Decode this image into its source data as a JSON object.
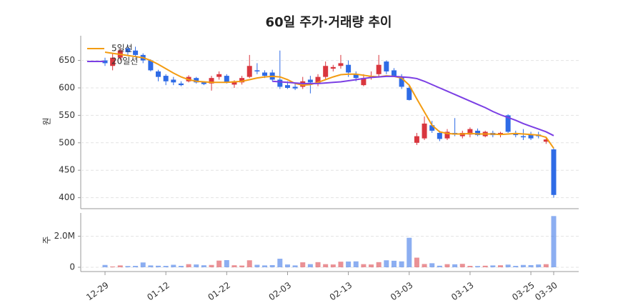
{
  "chart_data": {
    "type": "candlestick",
    "title": "60일 주가·거래량 추이",
    "categories": [
      "12-29",
      null,
      null,
      null,
      null,
      null,
      null,
      null,
      "01-12",
      null,
      null,
      null,
      null,
      null,
      null,
      null,
      "01-22",
      null,
      null,
      null,
      null,
      null,
      null,
      null,
      "02-03",
      null,
      null,
      null,
      null,
      null,
      null,
      null,
      "02-13",
      null,
      null,
      null,
      null,
      null,
      null,
      null,
      "03-03",
      null,
      null,
      null,
      null,
      null,
      null,
      null,
      "03-13",
      null,
      null,
      null,
      null,
      null,
      null,
      null,
      "03-25",
      null,
      null,
      "03-30"
    ],
    "open": [
      650,
      640,
      655,
      672,
      668,
      660,
      650,
      630,
      622,
      615,
      608,
      612,
      618,
      610,
      608,
      620,
      622,
      606,
      610,
      620,
      632,
      628,
      628,
      615,
      605,
      602,
      602,
      615,
      608,
      620,
      635,
      640,
      642,
      625,
      605,
      620,
      625,
      648,
      632,
      620,
      600,
      500,
      508,
      532,
      518,
      508,
      518,
      512,
      515,
      522,
      512,
      518,
      515,
      550,
      518,
      512,
      516,
      515,
      502,
      488
    ],
    "high": [
      655,
      662,
      672,
      678,
      675,
      663,
      652,
      633,
      625,
      620,
      612,
      623,
      620,
      612,
      622,
      630,
      625,
      614,
      622,
      660,
      645,
      632,
      633,
      668,
      612,
      608,
      620,
      622,
      625,
      648,
      642,
      660,
      650,
      630,
      625,
      630,
      660,
      650,
      636,
      625,
      605,
      518,
      548,
      540,
      522,
      525,
      545,
      522,
      528,
      526,
      522,
      522,
      520,
      552,
      522,
      525,
      520,
      520,
      510,
      490
    ],
    "low": [
      640,
      632,
      650,
      660,
      655,
      645,
      630,
      612,
      605,
      605,
      603,
      610,
      608,
      605,
      595,
      615,
      608,
      600,
      606,
      618,
      625,
      618,
      612,
      598,
      598,
      596,
      598,
      590,
      603,
      615,
      630,
      635,
      620,
      612,
      603,
      615,
      620,
      625,
      620,
      598,
      577,
      496,
      505,
      518,
      503,
      505,
      512,
      508,
      510,
      512,
      510,
      510,
      510,
      518,
      510,
      505,
      505,
      508,
      498,
      400
    ],
    "close": [
      645,
      655,
      668,
      665,
      660,
      650,
      632,
      620,
      612,
      610,
      605,
      620,
      610,
      607,
      618,
      625,
      610,
      612,
      618,
      640,
      630,
      622,
      615,
      602,
      600,
      599,
      612,
      610,
      620,
      640,
      638,
      645,
      628,
      618,
      618,
      622,
      642,
      630,
      622,
      602,
      578,
      512,
      535,
      522,
      507,
      520,
      515,
      518,
      525,
      514,
      520,
      514,
      518,
      520,
      514,
      510,
      508,
      512,
      506,
      405
    ],
    "up_color": "#d9363e",
    "down_color": "#2e6be6",
    "series": [
      {
        "name": "5일선",
        "color": "#f39c12",
        "values": [
          665,
          663,
          661,
          659,
          657,
          655,
          650,
          643,
          635,
          627,
          620,
          615,
          612,
          611,
          610,
          610,
          610,
          611,
          612,
          615,
          618,
          620,
          621,
          620,
          615,
          608,
          605,
          606,
          610,
          615,
          620,
          624,
          625,
          625,
          623,
          621,
          620,
          622,
          621,
          618,
          605,
          580,
          556,
          532,
          520,
          517,
          516,
          516,
          517,
          516,
          516,
          516,
          515,
          516,
          517,
          516,
          515,
          514,
          510,
          490
        ]
      },
      {
        "name": "20일선",
        "color": "#7b3fe4",
        "values": [
          null,
          null,
          null,
          null,
          null,
          null,
          null,
          null,
          null,
          null,
          null,
          null,
          null,
          null,
          null,
          null,
          null,
          null,
          null,
          null,
          null,
          null,
          612,
          611,
          610,
          609,
          608,
          608,
          608,
          609,
          610,
          611,
          613,
          615,
          617,
          619,
          620,
          621,
          621,
          620,
          619,
          617,
          612,
          606,
          600,
          594,
          588,
          582,
          576,
          570,
          564,
          557,
          551,
          546,
          541,
          535,
          530,
          525,
          520,
          513
        ]
      }
    ],
    "y_label": "원",
    "ylim": [
      380,
      695
    ],
    "yticks": [
      400,
      450,
      500,
      550,
      600,
      650
    ],
    "grid": true,
    "legend": "upper-left",
    "volume": {
      "label": "주",
      "values": [
        150000,
        50000,
        120000,
        80000,
        90000,
        310000,
        120000,
        100000,
        90000,
        160000,
        90000,
        200000,
        180000,
        130000,
        150000,
        430000,
        460000,
        130000,
        110000,
        450000,
        160000,
        120000,
        140000,
        550000,
        180000,
        120000,
        320000,
        200000,
        330000,
        200000,
        180000,
        360000,
        370000,
        380000,
        200000,
        180000,
        330000,
        450000,
        420000,
        380000,
        1900000,
        620000,
        210000,
        260000,
        100000,
        200000,
        190000,
        220000,
        90000,
        80000,
        100000,
        120000,
        130000,
        170000,
        90000,
        150000,
        140000,
        180000,
        200000,
        3300000
      ],
      "ylim": [
        0,
        3500000
      ],
      "yticks": [
        0,
        {
          "value": 2000000,
          "label": "2.0M"
        }
      ]
    }
  }
}
